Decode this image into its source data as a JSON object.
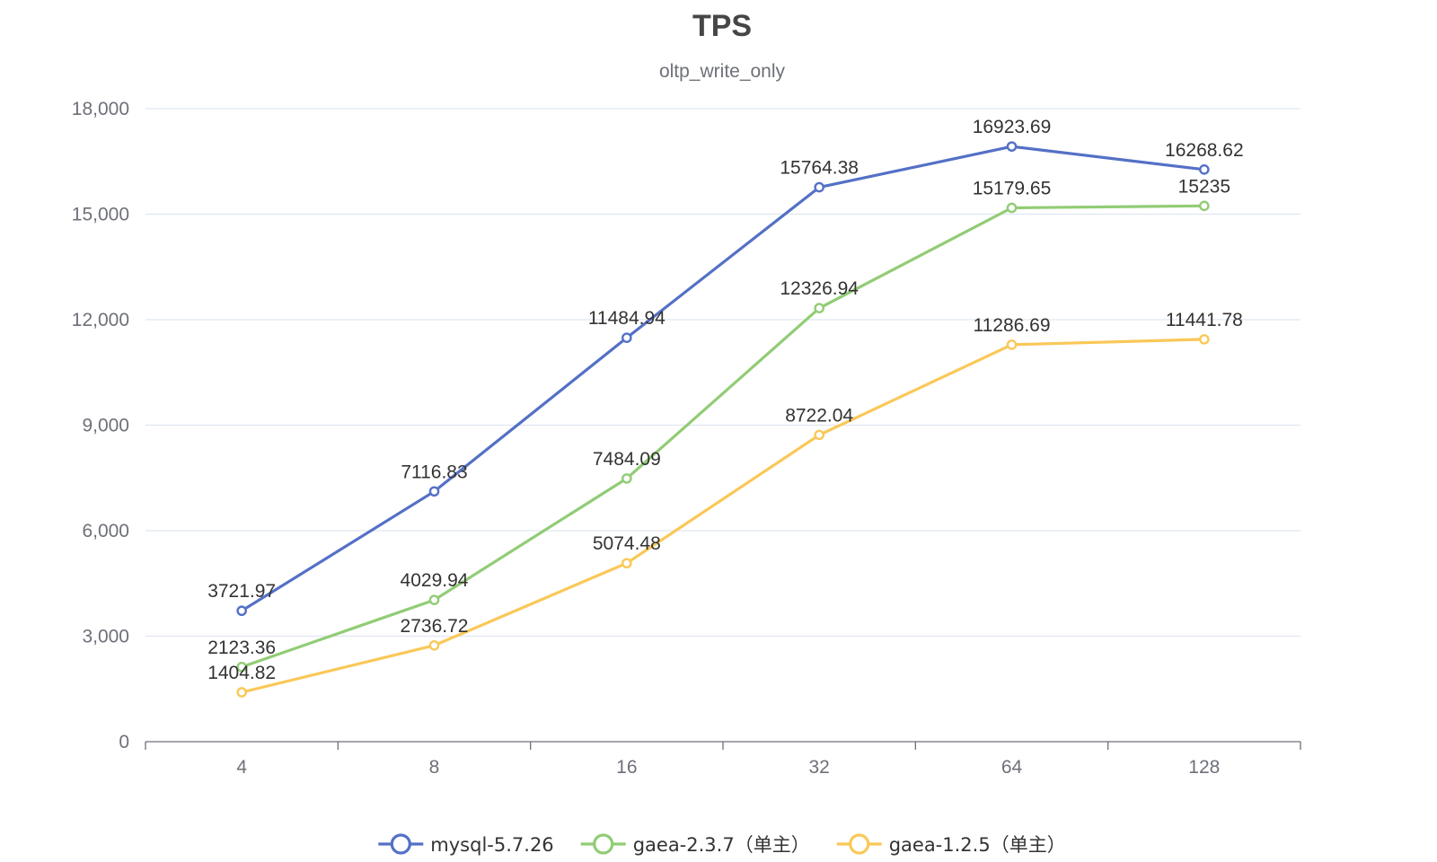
{
  "chart_data": {
    "type": "line",
    "title": "TPS",
    "subtitle": "oltp_write_only",
    "xlabel": "",
    "ylabel": "",
    "categories": [
      "4",
      "8",
      "16",
      "32",
      "64",
      "128"
    ],
    "ylim": [
      0,
      18000
    ],
    "yticks": [
      0,
      3000,
      6000,
      9000,
      12000,
      15000,
      18000
    ],
    "ytick_labels": [
      "0",
      "3,000",
      "6,000",
      "9,000",
      "12,000",
      "15,000",
      "18,000"
    ],
    "grid": true,
    "legend_position": "bottom-center",
    "series": [
      {
        "name": "mysql-5.7.26",
        "color": "#5470c6",
        "values": [
          3721.97,
          7116.83,
          11484.94,
          15764.38,
          16923.69,
          16268.62
        ],
        "labels": [
          "3721.97",
          "7116.83",
          "11484.94",
          "15764.38",
          "16923.69",
          "16268.62"
        ]
      },
      {
        "name": "gaea-2.3.7（单主）",
        "color": "#91cc75",
        "values": [
          2123.36,
          4029.94,
          7484.09,
          12326.94,
          15179.65,
          15235
        ],
        "labels": [
          "2123.36",
          "4029.94",
          "7484.09",
          "12326.94",
          "15179.65",
          "15235"
        ]
      },
      {
        "name": "gaea-1.2.5（单主）",
        "color": "#fac858",
        "values": [
          1404.82,
          2736.72,
          5074.48,
          8722.04,
          11286.69,
          11441.78
        ],
        "labels": [
          "1404.82",
          "2736.72",
          "5074.48",
          "8722.04",
          "11286.69",
          "11441.78"
        ]
      }
    ]
  }
}
